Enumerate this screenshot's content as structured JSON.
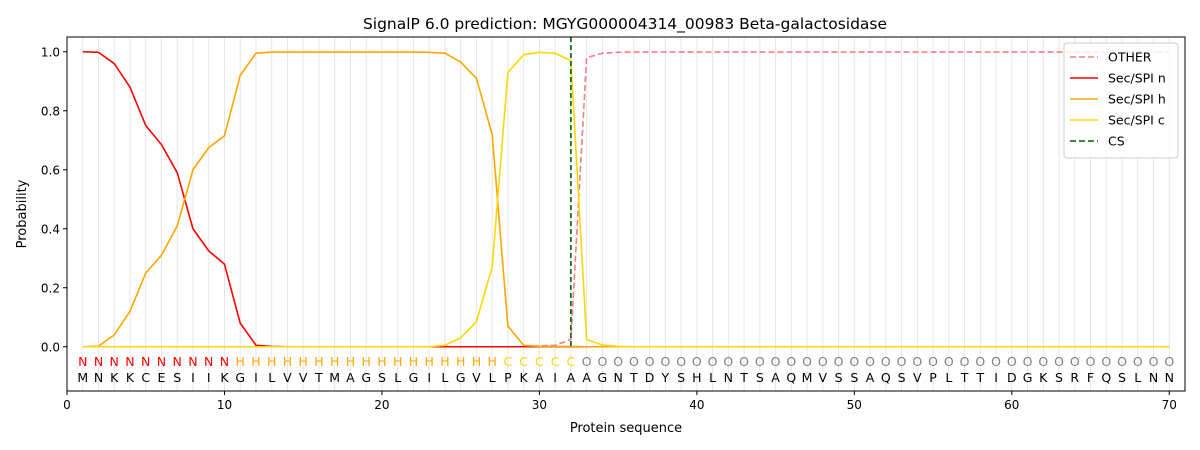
{
  "chart_data": {
    "type": "line",
    "title": "SignalP 6.0 prediction: MGYG000004314_00983 Beta-galactosidase",
    "xlabel": "Protein sequence",
    "ylabel": "Probability",
    "xlim": [
      0,
      71
    ],
    "ylim": [
      -0.15,
      1.05
    ],
    "xticks": [
      0,
      10,
      20,
      30,
      40,
      50,
      60,
      70
    ],
    "yticks": [
      0.0,
      0.2,
      0.4,
      0.6,
      0.8,
      1.0
    ],
    "legend_position": "top-right",
    "residues": [
      "M",
      "N",
      "K",
      "K",
      "C",
      "E",
      "S",
      "I",
      "I",
      "K",
      "G",
      "I",
      "L",
      "V",
      "V",
      "T",
      "M",
      "A",
      "G",
      "S",
      "L",
      "G",
      "I",
      "L",
      "G",
      "V",
      "L",
      "P",
      "K",
      "A",
      "I",
      "A",
      "A",
      "G",
      "N",
      "T",
      "D",
      "Y",
      "S",
      "H",
      "L",
      "N",
      "T",
      "S",
      "A",
      "Q",
      "M",
      "V",
      "S",
      "S",
      "A",
      "Q",
      "S",
      "V",
      "P",
      "L",
      "T",
      "T",
      "I",
      "D",
      "G",
      "K",
      "S",
      "R",
      "F",
      "Q",
      "S",
      "L",
      "N",
      "N"
    ],
    "labels": [
      "N",
      "N",
      "N",
      "N",
      "N",
      "N",
      "N",
      "N",
      "N",
      "N",
      "H",
      "H",
      "H",
      "H",
      "H",
      "H",
      "H",
      "H",
      "H",
      "H",
      "H",
      "H",
      "H",
      "H",
      "H",
      "H",
      "H",
      "C",
      "C",
      "C",
      "C",
      "C",
      "O",
      "O",
      "O",
      "O",
      "O",
      "O",
      "O",
      "O",
      "O",
      "O",
      "O",
      "O",
      "O",
      "O",
      "O",
      "O",
      "O",
      "O",
      "O",
      "O",
      "O",
      "O",
      "O",
      "O",
      "O",
      "O",
      "O",
      "O",
      "O",
      "O",
      "O",
      "O",
      "O",
      "O",
      "O",
      "O",
      "O",
      "O"
    ],
    "label_colors": {
      "N": "#ff0000",
      "H": "#ffa500",
      "C": "#ffd700",
      "O": "#808080"
    },
    "cs_position": 32,
    "series": [
      {
        "name": "OTHER",
        "color": "#f08080",
        "dash": "dashed",
        "values": [
          0,
          0,
          0,
          0,
          0,
          0,
          0,
          0,
          0,
          0,
          0,
          0,
          0,
          0,
          0,
          0,
          0,
          0,
          0,
          0,
          0,
          0,
          0,
          0,
          0,
          0,
          0,
          0,
          0,
          0.003,
          0.005,
          0.025,
          0.98,
          0.995,
          0.998,
          0.999,
          0.999,
          0.999,
          0.999,
          0.999,
          0.999,
          0.999,
          0.999,
          0.999,
          0.999,
          0.999,
          0.999,
          0.999,
          0.999,
          0.999,
          0.999,
          0.999,
          0.999,
          0.999,
          0.999,
          0.999,
          0.999,
          0.999,
          0.999,
          0.999,
          0.999,
          0.999,
          0.999,
          0.999,
          0.999,
          0.999,
          0.999,
          0.999,
          0.999,
          0.999
        ]
      },
      {
        "name": "Sec/SPI n",
        "color": "#ff0000",
        "dash": "solid",
        "values": [
          1.0,
          0.998,
          0.96,
          0.88,
          0.75,
          0.685,
          0.59,
          0.4,
          0.325,
          0.28,
          0.08,
          0.005,
          0.001,
          0,
          0,
          0,
          0,
          0,
          0,
          0,
          0,
          0,
          0,
          0,
          0,
          0,
          0,
          0,
          0,
          0,
          0,
          0,
          0,
          0,
          0,
          0,
          0,
          0,
          0,
          0,
          0,
          0,
          0,
          0,
          0,
          0,
          0,
          0,
          0,
          0,
          0,
          0,
          0,
          0,
          0,
          0,
          0,
          0,
          0,
          0,
          0,
          0,
          0,
          0,
          0,
          0,
          0,
          0,
          0,
          0
        ]
      },
      {
        "name": "Sec/SPI h",
        "color": "#ffa500",
        "dash": "solid",
        "values": [
          0,
          0.002,
          0.04,
          0.12,
          0.25,
          0.31,
          0.41,
          0.6,
          0.675,
          0.715,
          0.92,
          0.995,
          0.999,
          0.999,
          0.999,
          0.999,
          0.999,
          0.999,
          0.999,
          0.999,
          0.999,
          0.999,
          0.998,
          0.995,
          0.965,
          0.91,
          0.72,
          0.07,
          0.005,
          0.001,
          0.001,
          0.001,
          0,
          0,
          0,
          0,
          0,
          0,
          0,
          0,
          0,
          0,
          0,
          0,
          0,
          0,
          0,
          0,
          0,
          0,
          0,
          0,
          0,
          0,
          0,
          0,
          0,
          0,
          0,
          0,
          0,
          0,
          0,
          0,
          0,
          0,
          0,
          0,
          0,
          0
        ]
      },
      {
        "name": "Sec/SPI c",
        "color": "#ffd700",
        "dash": "solid",
        "values": [
          0,
          0,
          0,
          0,
          0,
          0,
          0,
          0,
          0,
          0,
          0,
          0,
          0,
          0,
          0,
          0,
          0,
          0,
          0,
          0,
          0,
          0,
          0,
          0.005,
          0.03,
          0.085,
          0.27,
          0.93,
          0.99,
          0.998,
          0.995,
          0.97,
          0.025,
          0.006,
          0.001,
          0,
          0,
          0,
          0,
          0,
          0,
          0,
          0,
          0,
          0,
          0,
          0,
          0,
          0,
          0,
          0,
          0,
          0,
          0,
          0,
          0,
          0,
          0,
          0,
          0,
          0,
          0,
          0,
          0,
          0,
          0,
          0,
          0,
          0,
          0
        ]
      }
    ],
    "cs_legend": {
      "name": "CS",
      "color": "#006400",
      "dash": "dashed"
    }
  }
}
